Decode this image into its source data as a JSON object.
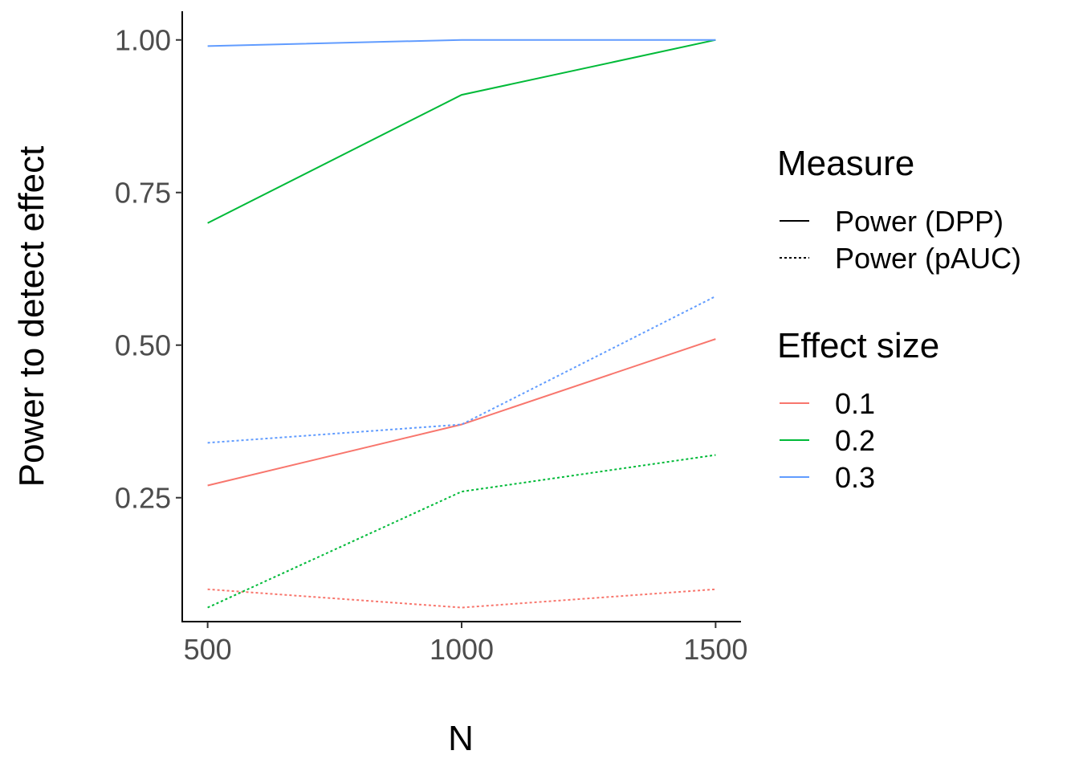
{
  "chart_data": {
    "type": "line",
    "title": "",
    "xlabel": "N",
    "ylabel": "Power to detect effect",
    "x": [
      500,
      1000,
      1500
    ],
    "x_ticks": [
      "500",
      "1000",
      "1500"
    ],
    "y_ticks": [
      "0.25",
      "0.50",
      "0.75",
      "1.00"
    ],
    "xlim": [
      450,
      1550
    ],
    "ylim": [
      0.047,
      1.047
    ],
    "grid": false,
    "legend_placement": "right",
    "legends": [
      {
        "title": "Measure",
        "items": [
          {
            "label": "Power (DPP)",
            "linetype": "solid"
          },
          {
            "label": "Power (pAUC)",
            "linetype": "dotted"
          }
        ]
      },
      {
        "title": "Effect size",
        "items": [
          {
            "label": "0.1",
            "color": "#F8766D"
          },
          {
            "label": "0.2",
            "color": "#00BA38"
          },
          {
            "label": "0.3",
            "color": "#619CFF"
          }
        ]
      }
    ],
    "series": [
      {
        "measure": "Power (DPP)",
        "effect": "0.1",
        "color": "#F8766D",
        "linetype": "solid",
        "values": [
          0.27,
          0.37,
          0.51
        ]
      },
      {
        "measure": "Power (DPP)",
        "effect": "0.2",
        "color": "#00BA38",
        "linetype": "solid",
        "values": [
          0.7,
          0.91,
          1.0
        ]
      },
      {
        "measure": "Power (DPP)",
        "effect": "0.3",
        "color": "#619CFF",
        "linetype": "solid",
        "values": [
          0.99,
          1.0,
          1.0
        ]
      },
      {
        "measure": "Power (pAUC)",
        "effect": "0.1",
        "color": "#F8766D",
        "linetype": "dotted",
        "values": [
          0.1,
          0.07,
          0.1
        ]
      },
      {
        "measure": "Power (pAUC)",
        "effect": "0.2",
        "color": "#00BA38",
        "linetype": "dotted",
        "values": [
          0.07,
          0.26,
          0.32
        ]
      },
      {
        "measure": "Power (pAUC)",
        "effect": "0.3",
        "color": "#619CFF",
        "linetype": "dotted",
        "values": [
          0.34,
          0.37,
          0.58
        ]
      }
    ]
  }
}
